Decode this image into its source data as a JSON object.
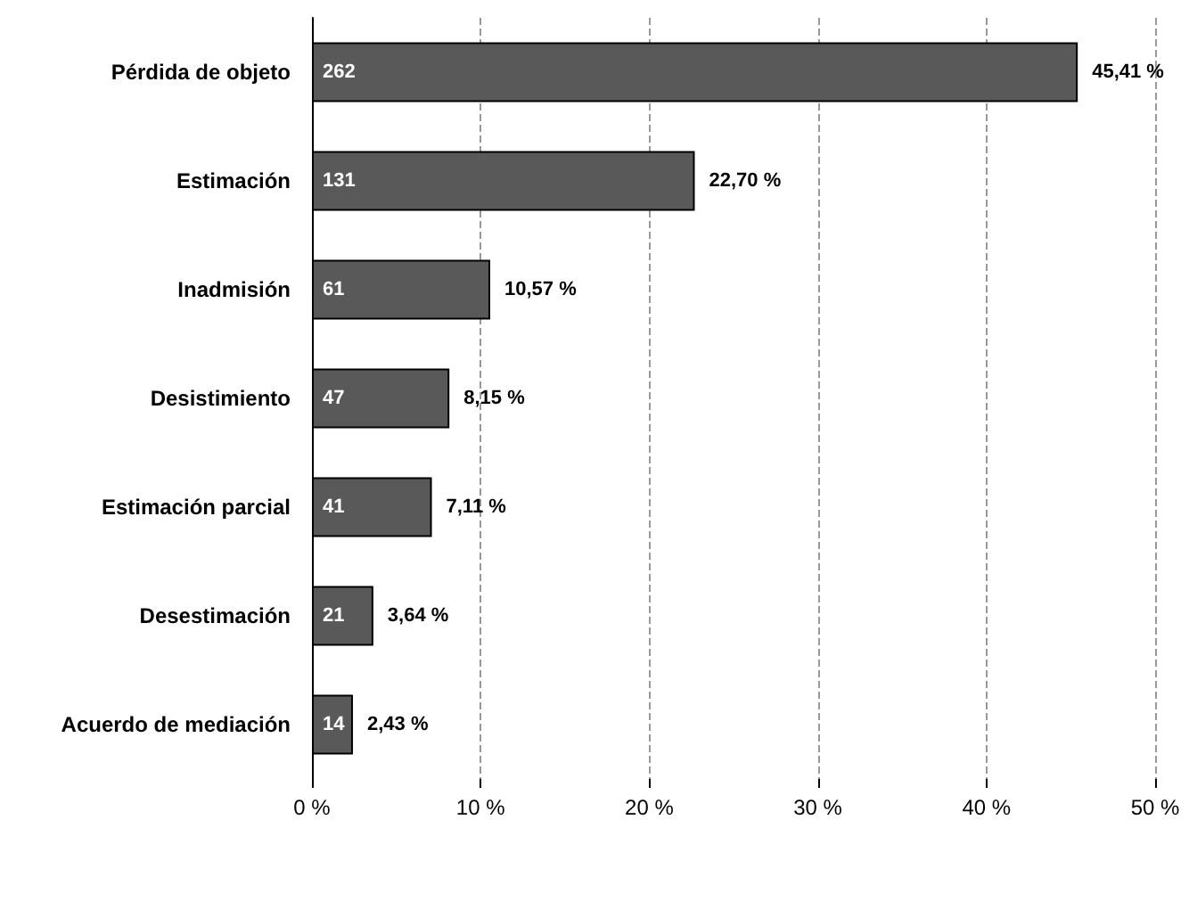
{
  "chart_data": {
    "type": "bar",
    "orientation": "horizontal",
    "categories": [
      "Pérdida de objeto",
      "Estimación",
      "Inadmisión",
      "Desistimiento",
      "Estimación parcial",
      "Desestimación",
      "Acuerdo de mediación"
    ],
    "values": [
      45.41,
      22.7,
      10.57,
      8.15,
      7.11,
      3.64,
      2.43
    ],
    "color": "#595959",
    "value_labels": [
      "45,41 %",
      "22,70 %",
      "10,57 %",
      "8,15 %",
      "7,11 %",
      "3,64 %",
      "2,43 %"
    ],
    "annotations": [
      "262",
      "131",
      "61",
      "47",
      "41",
      "21",
      "14"
    ],
    "xlim": [
      0,
      50
    ],
    "xticks": [
      {
        "value": 0,
        "label": "0 %"
      },
      {
        "value": 10,
        "label": "10 %"
      },
      {
        "value": 20,
        "label": "20 %"
      },
      {
        "value": 30,
        "label": "30 %"
      },
      {
        "value": 40,
        "label": "40 %"
      },
      {
        "value": 50,
        "label": "50 %"
      }
    ],
    "grid": "x"
  }
}
